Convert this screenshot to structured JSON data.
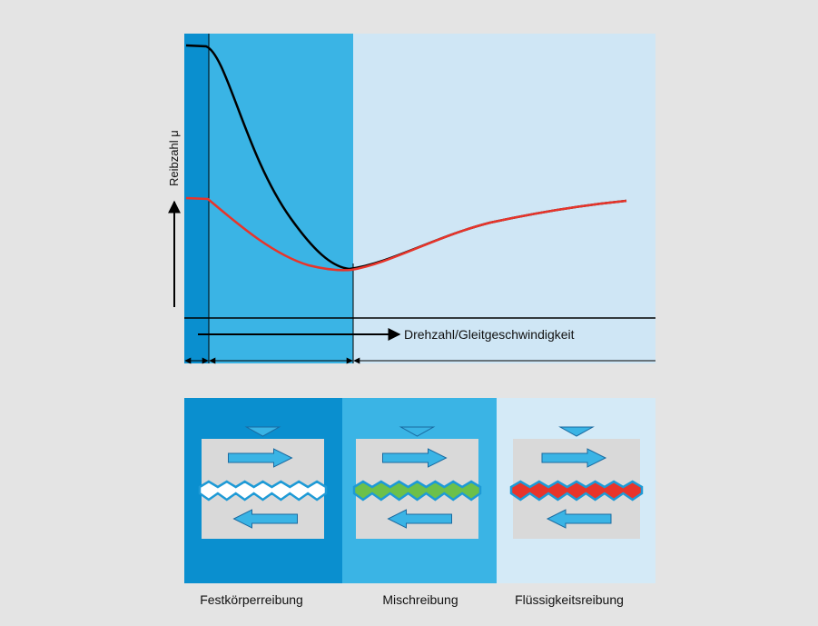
{
  "diagram": {
    "y_axis_label": "Reibzahl μ",
    "x_axis_label": "Drehzahl/Gleitgeschwindigkeit",
    "regimes": [
      {
        "label": "Festkörperreibung"
      },
      {
        "label": "Mischreibung"
      },
      {
        "label": "Flüssigkeitsreibung"
      }
    ]
  }
}
